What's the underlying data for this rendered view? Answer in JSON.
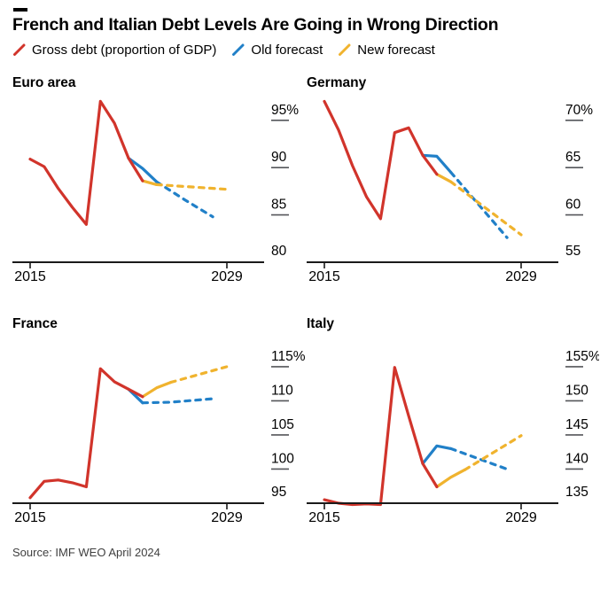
{
  "page": {
    "title": "French and Italian Debt Levels Are Going in Wrong Direction",
    "source": "Source: IMF WEO April 2024"
  },
  "colors": {
    "gross_debt": "#d1342b",
    "old_forecast": "#2180c8",
    "new_forecast": "#f0b32e",
    "axis": "#1a1a1a",
    "tick_dash": "#55565a",
    "label_text": "#000000",
    "background": "#ffffff"
  },
  "legend": [
    {
      "icon": "red-slash-icon",
      "label": "Gross debt (proportion of GDP)",
      "color": "#d1342b"
    },
    {
      "icon": "blue-slash-icon",
      "label": "Old forecast",
      "color": "#2180c8"
    },
    {
      "icon": "yellow-slash-icon",
      "label": "New forecast",
      "color": "#f0b32e"
    }
  ],
  "chart_data": [
    {
      "type": "line",
      "title": "Euro area",
      "x_ticks": [
        {
          "label": "2015",
          "value": 2015
        },
        {
          "label": "2029",
          "value": 2029
        }
      ],
      "y_ticks": [
        {
          "label": "95%",
          "value": 95
        },
        {
          "label": "90",
          "value": 90
        },
        {
          "label": "85",
          "value": 85
        },
        {
          "label": "80",
          "value": 80
        }
      ],
      "ylim": [
        80,
        97.6
      ],
      "series": [
        {
          "name": "Old forecast",
          "color": "#2180c8",
          "solid_until": 2024,
          "points": [
            [
              2022,
              91.0
            ],
            [
              2023,
              89.9
            ],
            [
              2024,
              88.5
            ],
            [
              2026,
              86.6
            ],
            [
              2028,
              84.8
            ]
          ]
        },
        {
          "name": "New forecast",
          "color": "#f0b32e",
          "solid_until": 2024,
          "points": [
            [
              2023,
              88.6
            ],
            [
              2024,
              88.2
            ],
            [
              2026,
              88.0
            ],
            [
              2029,
              87.7
            ]
          ]
        },
        {
          "name": "Gross debt (proportion of GDP)",
          "color": "#d1342b",
          "solid_until": null,
          "points": [
            [
              2015,
              90.9
            ],
            [
              2016,
              90.1
            ],
            [
              2017,
              87.8
            ],
            [
              2018,
              85.8
            ],
            [
              2019,
              84.0
            ],
            [
              2020,
              97.0
            ],
            [
              2021,
              94.7
            ],
            [
              2022,
              91.0
            ],
            [
              2023,
              88.6
            ]
          ]
        }
      ]
    },
    {
      "type": "line",
      "title": "Germany",
      "x_ticks": [
        {
          "label": "2015",
          "value": 2015
        },
        {
          "label": "2029",
          "value": 2029
        }
      ],
      "y_ticks": [
        {
          "label": "70%",
          "value": 70
        },
        {
          "label": "65",
          "value": 65
        },
        {
          "label": "60",
          "value": 60
        },
        {
          "label": "55",
          "value": 55
        }
      ],
      "ylim": [
        55,
        72.6
      ],
      "series": [
        {
          "name": "Old forecast",
          "color": "#2180c8",
          "solid_until": 2024,
          "points": [
            [
              2022,
              66.3
            ],
            [
              2023,
              66.2
            ],
            [
              2024,
              64.5
            ],
            [
              2028,
              57.6
            ]
          ]
        },
        {
          "name": "New forecast",
          "color": "#f0b32e",
          "solid_until": 2024,
          "points": [
            [
              2023,
              64.3
            ],
            [
              2024,
              63.5
            ],
            [
              2029,
              57.9
            ]
          ]
        },
        {
          "name": "Gross debt (proportion of GDP)",
          "color": "#d1342b",
          "solid_until": null,
          "points": [
            [
              2015,
              72.0
            ],
            [
              2016,
              69.0
            ],
            [
              2017,
              65.2
            ],
            [
              2018,
              61.9
            ],
            [
              2019,
              59.6
            ],
            [
              2020,
              68.7
            ],
            [
              2021,
              69.2
            ],
            [
              2022,
              66.3
            ],
            [
              2023,
              64.3
            ]
          ]
        }
      ]
    },
    {
      "type": "line",
      "title": "France",
      "x_ticks": [
        {
          "label": "2015",
          "value": 2015
        },
        {
          "label": "2029",
          "value": 2029
        }
      ],
      "y_ticks": [
        {
          "label": "115%",
          "value": 115
        },
        {
          "label": "110",
          "value": 110
        },
        {
          "label": "105",
          "value": 105
        },
        {
          "label": "100",
          "value": 100
        },
        {
          "label": "95",
          "value": 95
        }
      ],
      "ylim": [
        95,
        119.4
      ],
      "series": [
        {
          "name": "Old forecast",
          "color": "#2180c8",
          "solid_until": 2023,
          "points": [
            [
              2022,
              111.7
            ],
            [
              2023,
              109.7
            ],
            [
              2025,
              109.8
            ],
            [
              2028,
              110.3
            ]
          ]
        },
        {
          "name": "New forecast",
          "color": "#f0b32e",
          "solid_until": 2025,
          "points": [
            [
              2023,
              110.6
            ],
            [
              2024,
              111.9
            ],
            [
              2025,
              112.7
            ],
            [
              2029,
              115.0
            ]
          ]
        },
        {
          "name": "Gross debt (proportion of GDP)",
          "color": "#d1342b",
          "solid_until": null,
          "points": [
            [
              2015,
              95.8
            ],
            [
              2016,
              98.2
            ],
            [
              2017,
              98.4
            ],
            [
              2018,
              98.0
            ],
            [
              2019,
              97.4
            ],
            [
              2020,
              114.7
            ],
            [
              2021,
              112.8
            ],
            [
              2022,
              111.7
            ],
            [
              2023,
              110.6
            ]
          ]
        }
      ]
    },
    {
      "type": "line",
      "title": "Italy",
      "x_ticks": [
        {
          "label": "2015",
          "value": 2015
        },
        {
          "label": "2029",
          "value": 2029
        }
      ],
      "y_ticks": [
        {
          "label": "155%",
          "value": 155
        },
        {
          "label": "150",
          "value": 150
        },
        {
          "label": "145",
          "value": 145
        },
        {
          "label": "140",
          "value": 140
        },
        {
          "label": "135",
          "value": 135
        }
      ],
      "ylim": [
        135,
        159.4
      ],
      "series": [
        {
          "name": "Old forecast",
          "color": "#2180c8",
          "solid_until": 2024,
          "points": [
            [
              2022,
              140.8
            ],
            [
              2023,
              143.4
            ],
            [
              2024,
              143.0
            ],
            [
              2028,
              140.0
            ]
          ]
        },
        {
          "name": "New forecast",
          "color": "#f0b32e",
          "solid_until": 2025,
          "points": [
            [
              2023,
              137.4
            ],
            [
              2024,
              138.8
            ],
            [
              2025,
              139.9
            ],
            [
              2027,
              142.4
            ],
            [
              2029,
              144.9
            ]
          ]
        },
        {
          "name": "Gross debt (proportion of GDP)",
          "color": "#d1342b",
          "solid_until": null,
          "points": [
            [
              2015,
              135.5
            ],
            [
              2016,
              135.0
            ],
            [
              2017,
              134.5
            ],
            [
              2018,
              134.9
            ],
            [
              2019,
              134.3
            ],
            [
              2020,
              154.9
            ],
            [
              2021,
              147.8
            ],
            [
              2022,
              140.8
            ],
            [
              2023,
              137.4
            ]
          ]
        }
      ]
    }
  ]
}
